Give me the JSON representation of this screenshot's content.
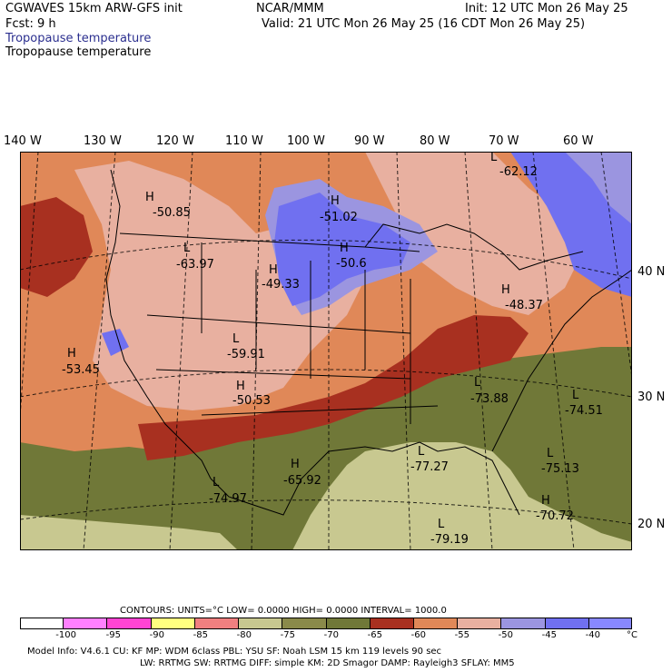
{
  "header": {
    "model": "CGWAVES 15km ARW-GFS init",
    "org": "NCAR/MMM",
    "init": "Init: 12 UTC Mon 26 May 25",
    "fcst": "Fcst:     9 h",
    "valid": "Valid: 21 UTC Mon 26 May 25 (16 CDT Mon 26 May 25)",
    "field_title_1": "Tropopause temperature",
    "field_title_2": "Tropopause temperature"
  },
  "map": {
    "lon_labels": [
      "140 W",
      "130 W",
      "120 W",
      "110 W",
      "100 W",
      "90 W",
      "80 W",
      "70 W",
      "60 W"
    ],
    "lat_labels": [
      "40 N",
      "30 N",
      "20 N"
    ],
    "pressure_labels": [
      {
        "type": "L",
        "value": "-62.12"
      },
      {
        "type": "H",
        "value": "-50.85"
      },
      {
        "type": "H",
        "value": "-51.02"
      },
      {
        "type": "L",
        "value": "-63.97"
      },
      {
        "type": "H",
        "value": "-50.6"
      },
      {
        "type": "H",
        "value": "-49.33"
      },
      {
        "type": "H",
        "value": "-48.37"
      },
      {
        "type": "L",
        "value": "-59.91"
      },
      {
        "type": "H",
        "value": "-53.45"
      },
      {
        "type": "H",
        "value": "-50.53"
      },
      {
        "type": "L",
        "value": "-73.88"
      },
      {
        "type": "L",
        "value": "-74.51"
      },
      {
        "type": "L",
        "value": "-77.27"
      },
      {
        "type": "H",
        "value": "-65.92"
      },
      {
        "type": "L",
        "value": "-75.13"
      },
      {
        "type": "L",
        "value": "-74.97"
      },
      {
        "type": "H",
        "value": "-70.72"
      },
      {
        "type": "L",
        "value": "-79.19"
      }
    ]
  },
  "contours": {
    "text": "CONTOURS:  UNITS=°C  LOW=  0.0000      HIGH=  0.0000      INTERVAL=   1000.0"
  },
  "colorbar": {
    "colors": [
      "#ffffff",
      "#ff80ff",
      "#ff44d4",
      "#ffff80",
      "#f08080",
      "#c8c890",
      "#8a8a4a",
      "#707838",
      "#a83020",
      "#e08858",
      "#e8b0a0",
      "#9b95e0",
      "#7070f0",
      "#8888ff"
    ],
    "ticks": [
      "-100",
      "-95",
      "-90",
      "-85",
      "-80",
      "-75",
      "-70",
      "-65",
      "-60",
      "-55",
      "-50",
      "-45",
      "-40"
    ],
    "unit": "°C"
  },
  "footer": {
    "line1": "Model Info: V4.6.1     CU: KF        MP: WDM 6class   PBL: YSU         SF: Noah LSM      15 km   119 levels    90 sec",
    "line2": "LW: RRTMG    SW: RRTMG   DIFF: simple KM: 2D Smagor DAMP: Rayleigh3   SFLAY: MM5"
  }
}
